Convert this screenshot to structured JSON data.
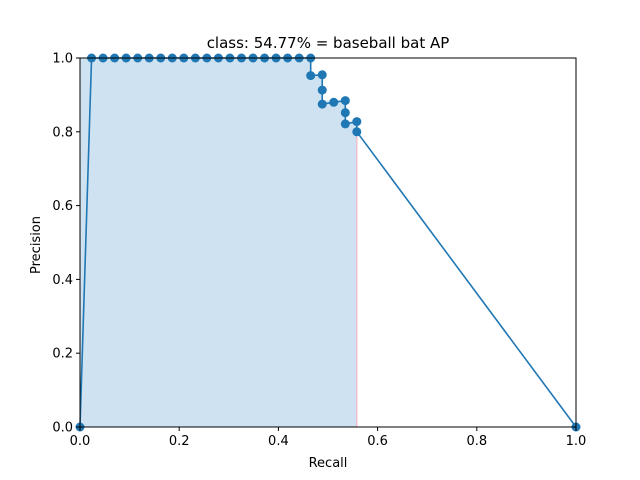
{
  "chart_data": {
    "type": "line",
    "title": "class: 54.77% = baseball bat AP",
    "xlabel": "Recall",
    "ylabel": "Precision",
    "xlim": [
      0.0,
      1.0
    ],
    "ylim": [
      0.0,
      1.0
    ],
    "xticks": [
      0.0,
      0.2,
      0.4,
      0.6,
      0.8,
      1.0
    ],
    "yticks": [
      0.0,
      0.2,
      0.4,
      0.6,
      0.8,
      1.0
    ],
    "xtick_labels": [
      "0.0",
      "0.2",
      "0.4",
      "0.6",
      "0.8",
      "1.0"
    ],
    "ytick_labels": [
      "0.0",
      "0.2",
      "0.4",
      "0.6",
      "0.8",
      "1.0"
    ],
    "grid": false,
    "line_color": "#1f77b4",
    "fill_color": "#cfe2f1",
    "boundary_color": "#f4b6c2",
    "series": [
      {
        "x": [
          0.0,
          0.0233,
          0.0465,
          0.0698,
          0.093,
          0.1163,
          0.1395,
          0.1628,
          0.186,
          0.2093,
          0.2326,
          0.2558,
          0.2791,
          0.3023,
          0.3256,
          0.3488,
          0.3721,
          0.3953,
          0.4186,
          0.4419,
          0.4651,
          0.4651,
          0.4884,
          0.4884,
          0.4884,
          0.5116,
          0.5349,
          0.5349,
          0.5349,
          0.5581,
          0.5581,
          1.0
        ],
        "y": [
          0.0,
          1.0,
          1.0,
          1.0,
          1.0,
          1.0,
          1.0,
          1.0,
          1.0,
          1.0,
          1.0,
          1.0,
          1.0,
          1.0,
          1.0,
          1.0,
          1.0,
          1.0,
          1.0,
          1.0,
          1.0,
          0.9524,
          0.9545,
          0.913,
          0.875,
          0.88,
          0.8846,
          0.8519,
          0.8214,
          0.8276,
          0.8,
          0.0
        ],
        "markers": true
      }
    ],
    "shaded_area": {
      "x": [
        0.0,
        0.0233,
        0.4651,
        0.4651,
        0.4884,
        0.4884,
        0.5349,
        0.5349,
        0.5581,
        0.5581
      ],
      "y": [
        1.0,
        1.0,
        1.0,
        0.9545,
        0.9545,
        0.8846,
        0.8846,
        0.8276,
        0.8276,
        0.8
      ]
    }
  }
}
